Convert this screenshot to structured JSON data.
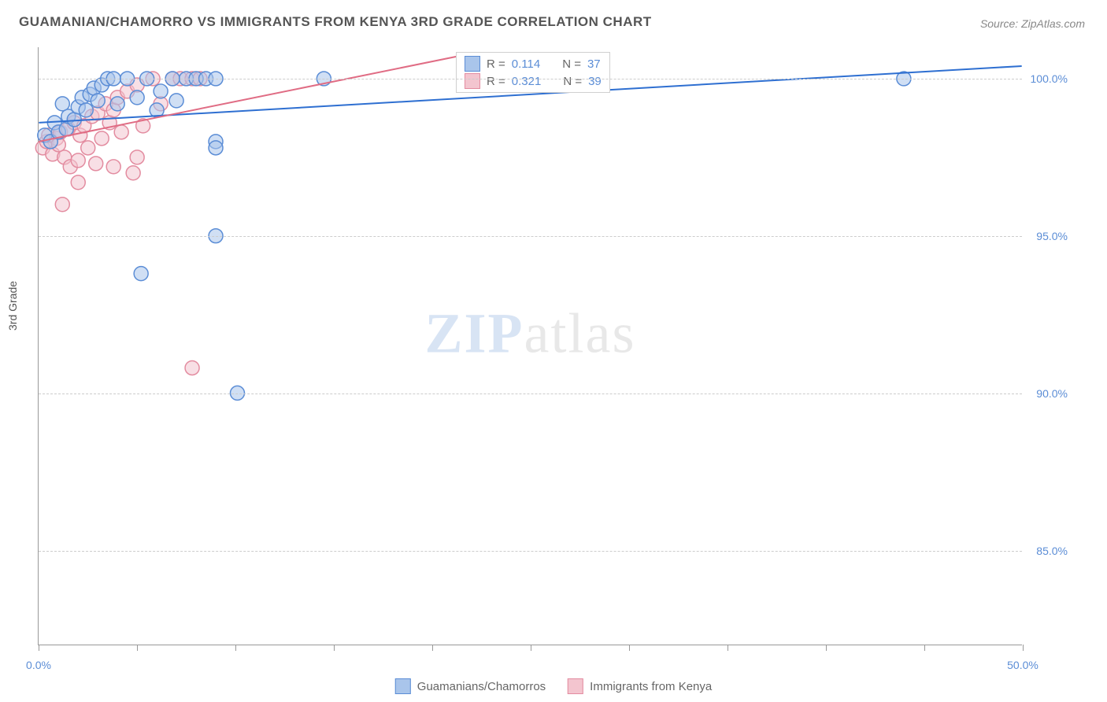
{
  "title": "GUAMANIAN/CHAMORRO VS IMMIGRANTS FROM KENYA 3RD GRADE CORRELATION CHART",
  "source_label": "Source: ",
  "source_value": "ZipAtlas.com",
  "ylabel": "3rd Grade",
  "watermark_zip": "ZIP",
  "watermark_atlas": "atlas",
  "chart": {
    "type": "scatter",
    "xlim": [
      0,
      50
    ],
    "ylim": [
      82,
      101
    ],
    "xticks": [
      0,
      5,
      10,
      15,
      20,
      25,
      30,
      35,
      40,
      45,
      50
    ],
    "xtick_labels": {
      "0": "0.0%",
      "50": "50.0%"
    },
    "yticks": [
      85,
      90,
      95,
      100
    ],
    "ytick_labels": [
      "85.0%",
      "90.0%",
      "95.0%",
      "100.0%"
    ],
    "plot_bg": "#ffffff",
    "grid_color": "#cccccc",
    "axis_color": "#999999",
    "marker_radius": 9,
    "marker_stroke_width": 1.5,
    "trend_line_width": 2,
    "series": [
      {
        "name": "Guamanians/Chamorros",
        "color_fill": "#a9c5eb",
        "color_stroke": "#5b8dd6",
        "line_color": "#2e6fd1",
        "r_value": "0.114",
        "n_value": "37",
        "trend": {
          "x1": 0,
          "y1": 98.6,
          "x2": 50,
          "y2": 100.4
        },
        "points": [
          [
            0.3,
            98.2
          ],
          [
            0.6,
            98.0
          ],
          [
            0.8,
            98.6
          ],
          [
            1.0,
            98.3
          ],
          [
            1.2,
            99.2
          ],
          [
            1.4,
            98.4
          ],
          [
            1.5,
            98.8
          ],
          [
            1.8,
            98.7
          ],
          [
            2.0,
            99.1
          ],
          [
            2.2,
            99.4
          ],
          [
            2.4,
            99.0
          ],
          [
            2.6,
            99.5
          ],
          [
            2.8,
            99.7
          ],
          [
            3.0,
            99.3
          ],
          [
            3.2,
            99.8
          ],
          [
            3.5,
            100.0
          ],
          [
            3.8,
            100.0
          ],
          [
            4.0,
            99.2
          ],
          [
            4.5,
            100.0
          ],
          [
            5.0,
            99.4
          ],
          [
            5.5,
            100.0
          ],
          [
            6.0,
            99.0
          ],
          [
            6.2,
            99.6
          ],
          [
            6.8,
            100.0
          ],
          [
            7.0,
            99.3
          ],
          [
            7.5,
            100.0
          ],
          [
            8.0,
            100.0
          ],
          [
            8.5,
            100.0
          ],
          [
            9.0,
            100.0
          ],
          [
            9.0,
            98.0
          ],
          [
            9.0,
            97.8
          ],
          [
            9.0,
            95.0
          ],
          [
            5.2,
            93.8
          ],
          [
            10.1,
            90.0
          ],
          [
            14.5,
            100.0
          ],
          [
            23.5,
            100.0
          ],
          [
            44.0,
            100.0
          ]
        ]
      },
      {
        "name": "Immigrants from Kenya",
        "color_fill": "#f3c5cf",
        "color_stroke": "#e38ca0",
        "line_color": "#e06c84",
        "r_value": "0.321",
        "n_value": "39",
        "trend": {
          "x1": 0,
          "y1": 98.0,
          "x2": 22,
          "y2": 100.8
        },
        "points": [
          [
            0.2,
            97.8
          ],
          [
            0.4,
            98.0
          ],
          [
            0.5,
            98.2
          ],
          [
            0.7,
            97.6
          ],
          [
            0.9,
            98.1
          ],
          [
            1.0,
            97.9
          ],
          [
            1.1,
            98.3
          ],
          [
            1.3,
            97.5
          ],
          [
            1.5,
            98.4
          ],
          [
            1.6,
            97.2
          ],
          [
            1.8,
            98.6
          ],
          [
            2.0,
            97.4
          ],
          [
            2.1,
            98.2
          ],
          [
            2.3,
            98.5
          ],
          [
            2.5,
            97.8
          ],
          [
            2.7,
            98.8
          ],
          [
            2.9,
            97.3
          ],
          [
            3.0,
            98.9
          ],
          [
            3.2,
            98.1
          ],
          [
            3.4,
            99.2
          ],
          [
            3.6,
            98.6
          ],
          [
            3.8,
            99.0
          ],
          [
            4.0,
            99.4
          ],
          [
            4.2,
            98.3
          ],
          [
            4.5,
            99.6
          ],
          [
            4.8,
            97.0
          ],
          [
            5.0,
            99.8
          ],
          [
            5.3,
            98.5
          ],
          [
            5.8,
            100.0
          ],
          [
            6.2,
            99.2
          ],
          [
            6.8,
            100.0
          ],
          [
            1.2,
            96.0
          ],
          [
            7.2,
            100.0
          ],
          [
            7.8,
            100.0
          ],
          [
            8.2,
            100.0
          ],
          [
            7.8,
            90.8
          ],
          [
            2.0,
            96.7
          ],
          [
            3.8,
            97.2
          ],
          [
            5.0,
            97.5
          ]
        ]
      }
    ]
  },
  "legend_top": {
    "r_label": "R = ",
    "n_label": "N = "
  },
  "bottom_legend": {
    "items": [
      "Guamanians/Chamorros",
      "Immigrants from Kenya"
    ]
  }
}
